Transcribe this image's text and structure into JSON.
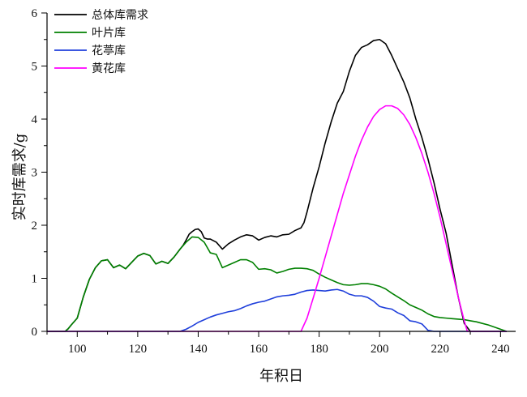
{
  "chart_data": {
    "type": "line",
    "title": "",
    "xlabel": "年积日",
    "ylabel": "实时库需求/g",
    "xlim": [
      90,
      245
    ],
    "ylim": [
      0,
      6
    ],
    "xticks": [
      100,
      120,
      140,
      160,
      180,
      200,
      220,
      240
    ],
    "yticks": [
      0,
      1,
      2,
      3,
      4,
      5,
      6
    ],
    "grid": false,
    "legend_position": "top-left",
    "series": [
      {
        "name": "总体库需求",
        "color": "#000000",
        "x": [
          90,
          96,
          97,
          98,
          100,
          102,
          104,
          106,
          108,
          110,
          112,
          114,
          116,
          118,
          120,
          122,
          124,
          126,
          128,
          130,
          132,
          134,
          135,
          136,
          137,
          138,
          139,
          140,
          141,
          142,
          143,
          144,
          146,
          148,
          150,
          152,
          154,
          156,
          158,
          160,
          162,
          164,
          166,
          168,
          170,
          172,
          174,
          175,
          176,
          178,
          180,
          182,
          184,
          186,
          188,
          190,
          192,
          194,
          196,
          198,
          200,
          202,
          204,
          206,
          208,
          210,
          212,
          214,
          216,
          218,
          220,
          222,
          224,
          226,
          228,
          230,
          232,
          234,
          236,
          238,
          240,
          242
        ],
        "y": [
          0,
          0,
          0.05,
          0.12,
          0.25,
          0.65,
          0.98,
          1.2,
          1.33,
          1.35,
          1.2,
          1.25,
          1.18,
          1.3,
          1.42,
          1.47,
          1.43,
          1.27,
          1.32,
          1.28,
          1.4,
          1.55,
          1.62,
          1.72,
          1.83,
          1.88,
          1.92,
          1.93,
          1.88,
          1.76,
          1.74,
          1.74,
          1.68,
          1.55,
          1.65,
          1.72,
          1.78,
          1.82,
          1.8,
          1.72,
          1.77,
          1.8,
          1.78,
          1.82,
          1.83,
          1.9,
          1.95,
          2.05,
          2.25,
          2.7,
          3.1,
          3.55,
          3.95,
          4.3,
          4.52,
          4.9,
          5.2,
          5.35,
          5.4,
          5.48,
          5.5,
          5.42,
          5.2,
          4.95,
          4.7,
          4.4,
          4.0,
          3.65,
          3.25,
          2.8,
          2.3,
          1.85,
          1.25,
          0.65,
          0.15,
          0,
          0,
          0,
          0,
          0,
          0,
          0
        ]
      },
      {
        "name": "叶片库",
        "color": "#008000",
        "x": [
          90,
          96,
          97,
          98,
          100,
          102,
          104,
          106,
          108,
          110,
          112,
          114,
          116,
          118,
          120,
          122,
          124,
          126,
          128,
          130,
          132,
          134,
          136,
          138,
          140,
          142,
          144,
          146,
          148,
          150,
          152,
          154,
          156,
          158,
          160,
          162,
          164,
          166,
          168,
          170,
          172,
          174,
          176,
          178,
          180,
          182,
          184,
          186,
          188,
          190,
          192,
          194,
          196,
          198,
          200,
          202,
          204,
          206,
          208,
          210,
          212,
          214,
          216,
          218,
          220,
          222,
          224,
          226,
          228,
          230,
          232,
          234,
          236,
          238,
          240,
          242
        ],
        "y": [
          0,
          0,
          0.05,
          0.12,
          0.25,
          0.65,
          0.98,
          1.2,
          1.33,
          1.35,
          1.2,
          1.25,
          1.18,
          1.3,
          1.42,
          1.47,
          1.43,
          1.27,
          1.32,
          1.28,
          1.4,
          1.55,
          1.68,
          1.78,
          1.77,
          1.68,
          1.48,
          1.45,
          1.2,
          1.25,
          1.3,
          1.35,
          1.35,
          1.3,
          1.17,
          1.18,
          1.16,
          1.1,
          1.13,
          1.17,
          1.19,
          1.19,
          1.18,
          1.15,
          1.08,
          1.02,
          0.97,
          0.92,
          0.88,
          0.87,
          0.88,
          0.9,
          0.9,
          0.88,
          0.85,
          0.8,
          0.72,
          0.65,
          0.58,
          0.5,
          0.45,
          0.4,
          0.33,
          0.28,
          0.26,
          0.25,
          0.24,
          0.23,
          0.22,
          0.2,
          0.18,
          0.15,
          0.12,
          0.08,
          0.04,
          0
        ]
      },
      {
        "name": "花葶库",
        "color": "#1f3fdb",
        "x": [
          90,
          134,
          136,
          138,
          140,
          142,
          144,
          146,
          148,
          150,
          152,
          154,
          156,
          158,
          160,
          162,
          164,
          166,
          168,
          170,
          172,
          174,
          176,
          178,
          180,
          182,
          184,
          186,
          188,
          190,
          192,
          194,
          196,
          198,
          200,
          202,
          204,
          206,
          208,
          210,
          212,
          214,
          216,
          218,
          220,
          222,
          224,
          226,
          228,
          242
        ],
        "y": [
          0,
          0,
          0.04,
          0.1,
          0.17,
          0.22,
          0.27,
          0.31,
          0.34,
          0.37,
          0.39,
          0.43,
          0.48,
          0.52,
          0.55,
          0.57,
          0.61,
          0.65,
          0.67,
          0.68,
          0.7,
          0.74,
          0.77,
          0.78,
          0.77,
          0.76,
          0.78,
          0.79,
          0.76,
          0.7,
          0.67,
          0.67,
          0.64,
          0.57,
          0.47,
          0.44,
          0.42,
          0.35,
          0.3,
          0.2,
          0.18,
          0.14,
          0.02,
          0,
          0,
          0,
          0,
          0,
          0,
          0
        ]
      },
      {
        "name": "黄花库",
        "color": "#ff00ff",
        "x": [
          90,
          174,
          176,
          178,
          180,
          182,
          184,
          186,
          188,
          190,
          192,
          194,
          196,
          198,
          200,
          202,
          204,
          206,
          208,
          210,
          212,
          214,
          216,
          218,
          220,
          222,
          224,
          226,
          228,
          229,
          242
        ],
        "y": [
          0,
          0,
          0.25,
          0.62,
          1.0,
          1.4,
          1.8,
          2.2,
          2.6,
          2.95,
          3.3,
          3.6,
          3.85,
          4.05,
          4.18,
          4.25,
          4.25,
          4.2,
          4.08,
          3.9,
          3.65,
          3.35,
          3.0,
          2.6,
          2.15,
          1.65,
          1.15,
          0.65,
          0.2,
          0,
          0
        ]
      }
    ]
  }
}
